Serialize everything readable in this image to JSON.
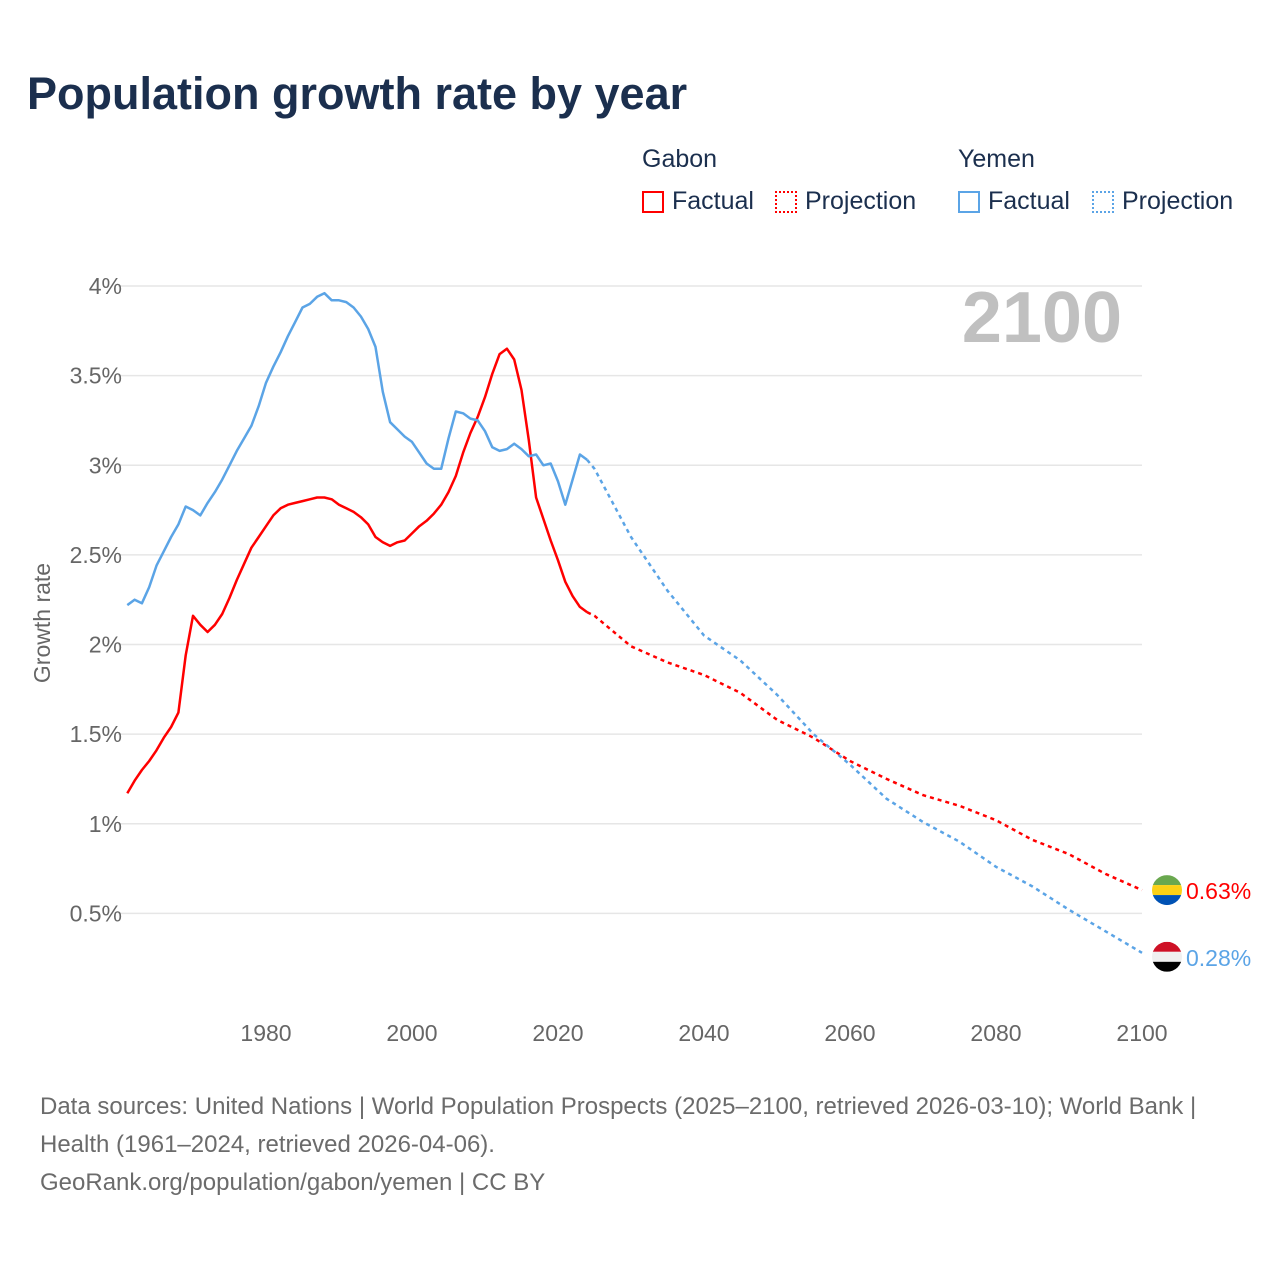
{
  "title": "Population growth rate by year",
  "legend": {
    "groups": [
      {
        "country": "Gabon",
        "factual": "Factual",
        "projection": "Projection",
        "color": "#ff0000"
      },
      {
        "country": "Yemen",
        "factual": "Factual",
        "projection": "Projection",
        "color": "#5ba4e6"
      }
    ]
  },
  "chart_data": {
    "type": "line",
    "title": "Population growth rate by year",
    "xlabel": "",
    "ylabel": "Growth rate",
    "xlim": [
      1961,
      2100
    ],
    "ylim": [
      0,
      4
    ],
    "x_ticks": [
      1980,
      2000,
      2020,
      2040,
      2060,
      2080,
      2100
    ],
    "x_tick_labels": [
      "1980",
      "2000",
      "2020",
      "2040",
      "2060",
      "2080",
      "2100"
    ],
    "y_ticks": [
      0.5,
      1,
      1.5,
      2,
      2.5,
      3,
      3.5,
      4
    ],
    "y_tick_labels": [
      "0.5%",
      "1%",
      "1.5%",
      "2%",
      "2.5%",
      "3%",
      "3.5%",
      "4%"
    ],
    "year_label": "2100",
    "grid": true,
    "series": [
      {
        "name": "Gabon",
        "color": "#ff0000",
        "end_label": "0.63%",
        "factual_start": 1961,
        "factual": [
          1.17,
          1.24,
          1.3,
          1.35,
          1.41,
          1.48,
          1.54,
          1.62,
          1.94,
          2.16,
          2.11,
          2.07,
          2.11,
          2.17,
          2.26,
          2.36,
          2.45,
          2.54,
          2.6,
          2.66,
          2.72,
          2.76,
          2.78,
          2.79,
          2.8,
          2.81,
          2.82,
          2.82,
          2.81,
          2.78,
          2.76,
          2.74,
          2.71,
          2.67,
          2.6,
          2.57,
          2.55,
          2.57,
          2.58,
          2.62,
          2.66,
          2.69,
          2.73,
          2.78,
          2.85,
          2.94,
          3.07,
          3.18,
          3.27,
          3.38,
          3.51,
          3.62,
          3.65,
          3.59,
          3.42,
          3.14,
          2.82,
          2.7,
          2.58,
          2.47,
          2.35,
          2.27,
          2.21,
          2.18
        ],
        "projection_years": [
          2024,
          2025,
          2030,
          2035,
          2040,
          2045,
          2050,
          2055,
          2060,
          2065,
          2070,
          2075,
          2080,
          2085,
          2090,
          2095,
          2100
        ],
        "projection": [
          2.18,
          2.16,
          1.99,
          1.9,
          1.83,
          1.73,
          1.58,
          1.48,
          1.35,
          1.25,
          1.16,
          1.1,
          1.02,
          0.91,
          0.83,
          0.72,
          0.63
        ]
      },
      {
        "name": "Yemen",
        "color": "#5ba4e6",
        "end_label": "0.28%",
        "factual_start": 1961,
        "factual": [
          2.22,
          2.25,
          2.23,
          2.32,
          2.44,
          2.52,
          2.6,
          2.67,
          2.77,
          2.75,
          2.72,
          2.79,
          2.85,
          2.92,
          3.0,
          3.08,
          3.15,
          3.22,
          3.33,
          3.46,
          3.55,
          3.63,
          3.72,
          3.8,
          3.88,
          3.9,
          3.94,
          3.96,
          3.92,
          3.92,
          3.91,
          3.88,
          3.83,
          3.76,
          3.66,
          3.41,
          3.24,
          3.2,
          3.16,
          3.13,
          3.07,
          3.01,
          2.98,
          2.98,
          3.15,
          3.3,
          3.29,
          3.26,
          3.25,
          3.19,
          3.1,
          3.08,
          3.09,
          3.12,
          3.09,
          3.05,
          3.06,
          3.0,
          3.01,
          2.91,
          2.78,
          2.92,
          3.06,
          3.03
        ],
        "projection_years": [
          2024,
          2025,
          2030,
          2035,
          2040,
          2045,
          2050,
          2055,
          2060,
          2065,
          2070,
          2075,
          2080,
          2085,
          2090,
          2095,
          2100
        ],
        "projection": [
          3.03,
          2.98,
          2.6,
          2.3,
          2.05,
          1.91,
          1.72,
          1.5,
          1.33,
          1.14,
          1.01,
          0.9,
          0.76,
          0.65,
          0.52,
          0.4,
          0.28
        ]
      }
    ]
  },
  "footer": {
    "sources": "Data sources: United Nations | World Population Prospects (2025–2100, retrieved 2026-03-10); World Bank | Health (1961–2024, retrieved 2026-04-06).",
    "credit": "GeoRank.org/population/gabon/yemen | CC BY"
  }
}
